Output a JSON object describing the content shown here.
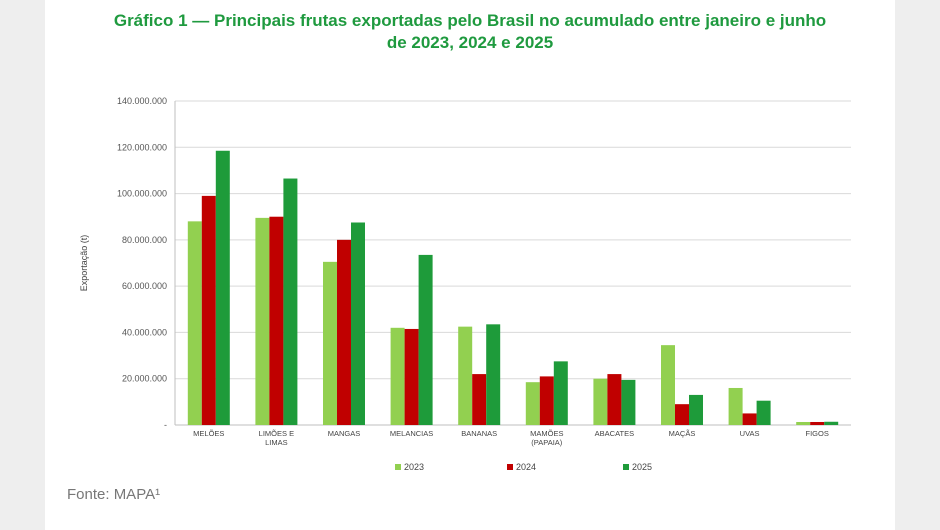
{
  "title_line1": "Gráfico 1 — Principais frutas exportadas pelo Brasil no acumulado entre janeiro e junho",
  "title_line2": "de 2023, 2024 e 2025",
  "source": "Fonte: MAPA¹",
  "colors": {
    "title": "#1f9a3f",
    "s2023": "#92d050",
    "s2024": "#c00000",
    "s2025": "#1e9b3a"
  },
  "chart_data": {
    "type": "bar",
    "ylabel": "Exportação (t)",
    "ylim": [
      0,
      140000000
    ],
    "yticks": [
      "-",
      "20.000.000",
      "40.000.000",
      "60.000.000",
      "80.000.000",
      "100.000.000",
      "120.000.000",
      "140.000.000"
    ],
    "grid": true,
    "legend_position": "bottom",
    "categories": [
      [
        "MELÕES"
      ],
      [
        "LIMÕES E",
        "LIMAS"
      ],
      [
        "MANGAS"
      ],
      [
        "MELANCIAS"
      ],
      [
        "BANANAS"
      ],
      [
        "MAMÕES",
        "(PAPAIA)"
      ],
      [
        "ABACATES"
      ],
      [
        "MAÇÃS"
      ],
      [
        "UVAS"
      ],
      [
        "FIGOS"
      ]
    ],
    "series": [
      {
        "name": "2023",
        "color": "#92d050",
        "values": [
          88000000,
          89500000,
          70500000,
          42000000,
          42500000,
          18500000,
          20000000,
          34500000,
          16000000,
          1300000
        ]
      },
      {
        "name": "2024",
        "color": "#c00000",
        "values": [
          99000000,
          90000000,
          80000000,
          41500000,
          22000000,
          21000000,
          22000000,
          9000000,
          5000000,
          1300000
        ]
      },
      {
        "name": "2025",
        "color": "#1e9b3a",
        "values": [
          118500000,
          106500000,
          87500000,
          73500000,
          43500000,
          27500000,
          19500000,
          13000000,
          10500000,
          1400000
        ]
      }
    ]
  }
}
